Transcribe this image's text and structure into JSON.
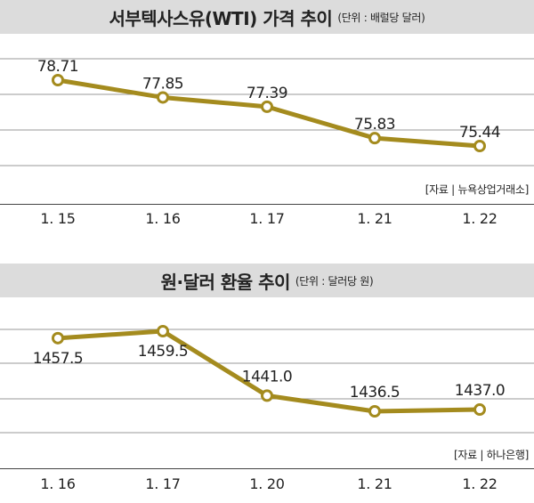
{
  "chart_data": [
    {
      "type": "line",
      "title": "서부텍사스유(WTI) 가격 추이",
      "unit": "(단위 : 배럴당 달러)",
      "source": "[자료 | 뉴욕상업거래소]",
      "categories": [
        "1. 15",
        "1. 16",
        "1. 17",
        "1. 21",
        "1. 22"
      ],
      "series": [
        {
          "values": [
            78.71,
            77.85,
            77.39,
            75.83,
            75.44
          ],
          "labels": [
            "78.71",
            "77.85",
            "77.39",
            "75.83",
            "75.44"
          ]
        }
      ],
      "grid": true,
      "line_color": "#a48b1e"
    },
    {
      "type": "line",
      "title": "원·달러 환율 추이",
      "unit": "(단위 : 달러당 원)",
      "source": "[자료 | 하나은행]",
      "categories": [
        "1. 16",
        "1. 17",
        "1. 20",
        "1. 21",
        "1. 22"
      ],
      "series": [
        {
          "values": [
            1457.5,
            1459.5,
            1441.0,
            1436.5,
            1437.0
          ],
          "labels": [
            "1457.5",
            "1459.5",
            "1441.0",
            "1436.5",
            "1437.0"
          ]
        }
      ],
      "grid": true,
      "line_color": "#a48b1e"
    }
  ]
}
